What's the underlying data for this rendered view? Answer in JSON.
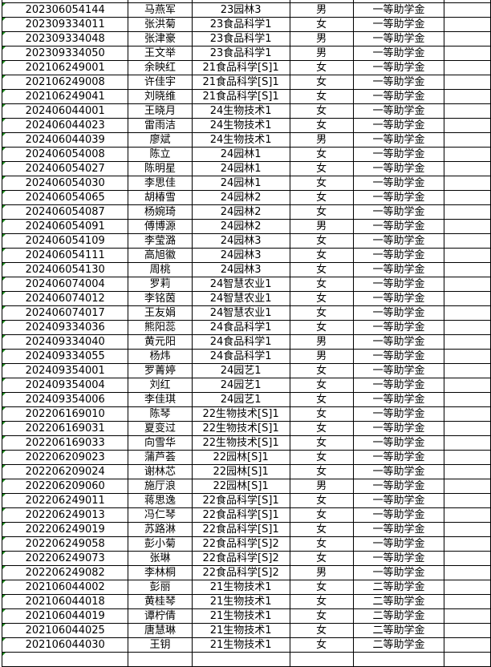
{
  "rows": [
    [
      "",
      "",
      "",
      "",
      ""
    ],
    [
      "202306054144",
      "马燕军",
      "23园林3",
      "男",
      "一等助学金"
    ],
    [
      "202309334011",
      "张洪菊",
      "23食品科学1",
      "女",
      "一等助学金"
    ],
    [
      "202309334048",
      "张津豪",
      "23食品科学1",
      "男",
      "一等助学金"
    ],
    [
      "202309334050",
      "王文举",
      "23食品科学1",
      "男",
      "一等助学金"
    ],
    [
      "202106249001",
      "余映红",
      "21食品科学[S]1",
      "女",
      "一等助学金"
    ],
    [
      "202106249008",
      "许佳宇",
      "21食品科学[S]1",
      "女",
      "一等助学金"
    ],
    [
      "202106249041",
      "刘晓维",
      "21食品科学[S]1",
      "女",
      "一等助学金"
    ],
    [
      "202406044001",
      "王晓月",
      "24生物技术1",
      "女",
      "一等助学金"
    ],
    [
      "202406044023",
      "雷雨洁",
      "24生物技术1",
      "女",
      "一等助学金"
    ],
    [
      "202406044039",
      "廖斌",
      "24生物技术1",
      "男",
      "一等助学金"
    ],
    [
      "202406054008",
      "陈立",
      "24园林1",
      "女",
      "一等助学金"
    ],
    [
      "202406054027",
      "陈明星",
      "24园林1",
      "女",
      "一等助学金"
    ],
    [
      "202406054030",
      "李思佳",
      "24园林1",
      "女",
      "一等助学金"
    ],
    [
      "202406054065",
      "胡椿雪",
      "24园林2",
      "女",
      "一等助学金"
    ],
    [
      "202406054087",
      "杨婉琦",
      "24园林2",
      "女",
      "一等助学金"
    ],
    [
      "202406054091",
      "傅博源",
      "24园林2",
      "男",
      "一等助学金"
    ],
    [
      "202406054109",
      "李莹潞",
      "24园林3",
      "女",
      "一等助学金"
    ],
    [
      "202406054111",
      "高旭徽",
      "24园林3",
      "女",
      "一等助学金"
    ],
    [
      "202406054130",
      "周桃",
      "24园林3",
      "女",
      "一等助学金"
    ],
    [
      "202406074004",
      "罗莉",
      "24智慧农业1",
      "女",
      "一等助学金"
    ],
    [
      "202406074012",
      "李铭茵",
      "24智慧农业1",
      "女",
      "一等助学金"
    ],
    [
      "202406074017",
      "王友娟",
      "24智慧农业1",
      "女",
      "一等助学金"
    ],
    [
      "202409334036",
      "熊阳蕊",
      "24食品科学1",
      "女",
      "一等助学金"
    ],
    [
      "202409334040",
      "黄元阳",
      "24食品科学1",
      "男",
      "一等助学金"
    ],
    [
      "202409334055",
      "杨炜",
      "24食品科学1",
      "男",
      "一等助学金"
    ],
    [
      "202409354001",
      "罗菁婷",
      "24园艺1",
      "女",
      "一等助学金"
    ],
    [
      "202409354004",
      "刘红",
      "24园艺1",
      "女",
      "一等助学金"
    ],
    [
      "202409354006",
      "李佳琪",
      "24园艺1",
      "女",
      "一等助学金"
    ],
    [
      "202206169010",
      "陈琴",
      "22生物技术[S]1",
      "女",
      "一等助学金"
    ],
    [
      "202206169031",
      "夏变过",
      "22生物技术[S]1",
      "女",
      "一等助学金"
    ],
    [
      "202206169033",
      "向雪华",
      "22生物技术[S]1",
      "女",
      "一等助学金"
    ],
    [
      "202206209023",
      "蒲芦荟",
      "22园林[S]1",
      "女",
      "一等助学金"
    ],
    [
      "202206209024",
      "谢林芯",
      "22园林[S]1",
      "女",
      "一等助学金"
    ],
    [
      "202206209060",
      "施厅浪",
      "22园林[S]1",
      "男",
      "一等助学金"
    ],
    [
      "202206249011",
      "蒋思逸",
      "22食品科学[S]1",
      "女",
      "一等助学金"
    ],
    [
      "202206249013",
      "冯仁琴",
      "22食品科学[S]1",
      "女",
      "一等助学金"
    ],
    [
      "202206249019",
      "苏路淋",
      "22食品科学[S]1",
      "女",
      "一等助学金"
    ],
    [
      "202206249058",
      "彭小菊",
      "22食品科学[S]2",
      "女",
      "一等助学金"
    ],
    [
      "202206249073",
      "张琳",
      "22食品科学[S]2",
      "女",
      "一等助学金"
    ],
    [
      "202206249082",
      "李林桐",
      "22食品科学[S]2",
      "男",
      "一等助学金"
    ],
    [
      "202106044002",
      "彭丽",
      "21生物技术1",
      "女",
      "二等助学金"
    ],
    [
      "202106044018",
      "黄桂琴",
      "21生物技术1",
      "女",
      "二等助学金"
    ],
    [
      "202106044019",
      "谭柠倩",
      "21生物技术1",
      "女",
      "二等助学金"
    ],
    [
      "202106044025",
      "唐慧琳",
      "21生物技术1",
      "女",
      "二等助学金"
    ],
    [
      "202106044030",
      "王钥",
      "21生物技术1",
      "女",
      "二等助学金"
    ],
    [
      "",
      "",
      "",
      "",
      ""
    ]
  ]
}
